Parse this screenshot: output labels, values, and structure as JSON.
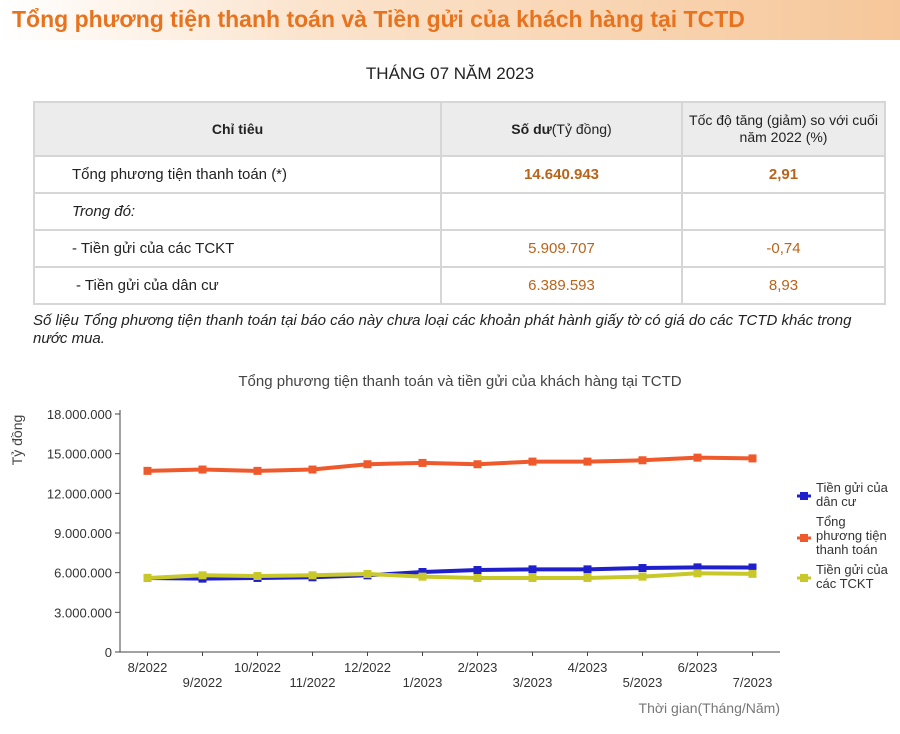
{
  "page_title": "Tổng phương tiện thanh toán và Tiền gửi của khách hàng tại TCTD",
  "period": "THÁNG 07 NĂM 2023",
  "table": {
    "headers": [
      "Chỉ tiêu",
      "Số dư(Tỷ đồng)",
      "Tốc độ tăng (giảm) so với cuối năm 2022 (%)"
    ],
    "header_bold_part": "Số dư",
    "header_rest_part": "(Tỷ đồng)",
    "rows": [
      {
        "label": "Tổng phương tiện thanh toán (*)",
        "balance": "14.640.943",
        "growth": "2,91"
      },
      {
        "label": "Trong đó:",
        "balance": "",
        "growth": ""
      },
      {
        "label": "- Tiền gửi của các TCKT",
        "balance": "5.909.707",
        "growth": "-0,74"
      },
      {
        "label": " - Tiền gửi của dân cư",
        "balance": "6.389.593",
        "growth": "8,93"
      }
    ]
  },
  "note": "Số liệu Tổng phương tiện thanh toán tại báo cáo này chưa loại các khoản phát hành giấy tờ có giá do các TCTD khác trong nước mua.",
  "chart_data": {
    "type": "line",
    "title": "Tổng phương tiện thanh toán và tiền gửi của khách hàng tại TCTD",
    "xlabel": "Thời gian(Tháng/Năm)",
    "ylabel": "Tỷ đồng",
    "ylim": [
      0,
      18000000
    ],
    "yticks": [
      0,
      3000000,
      6000000,
      9000000,
      12000000,
      15000000,
      18000000
    ],
    "ytick_labels": [
      "0",
      "3.000.000",
      "6.000.000",
      "9.000.000",
      "12.000.000",
      "15.000.000",
      "18.000.000"
    ],
    "categories": [
      "8/2022",
      "9/2022",
      "10/2022",
      "11/2022",
      "12/2022",
      "1/2023",
      "2/2023",
      "3/2023",
      "4/2023",
      "5/2023",
      "6/2023",
      "7/2023"
    ],
    "grid": false,
    "legend_position": "right",
    "series": [
      {
        "name": "Tiền gửi của dân cư",
        "color": "#1f1fcc",
        "values": [
          5600000,
          5550000,
          5600000,
          5650000,
          5800000,
          6050000,
          6200000,
          6250000,
          6250000,
          6350000,
          6400000,
          6389593
        ]
      },
      {
        "name": "Tổng phương tiện thanh toán",
        "color": "#ef5a2c",
        "values": [
          13700000,
          13800000,
          13700000,
          13800000,
          14200000,
          14300000,
          14200000,
          14400000,
          14400000,
          14500000,
          14700000,
          14640943
        ]
      },
      {
        "name": "Tiền gửi của các TCKT",
        "color": "#c8c82a",
        "values": [
          5600000,
          5800000,
          5750000,
          5800000,
          5900000,
          5700000,
          5600000,
          5600000,
          5600000,
          5700000,
          5950000,
          5909707
        ]
      }
    ]
  }
}
